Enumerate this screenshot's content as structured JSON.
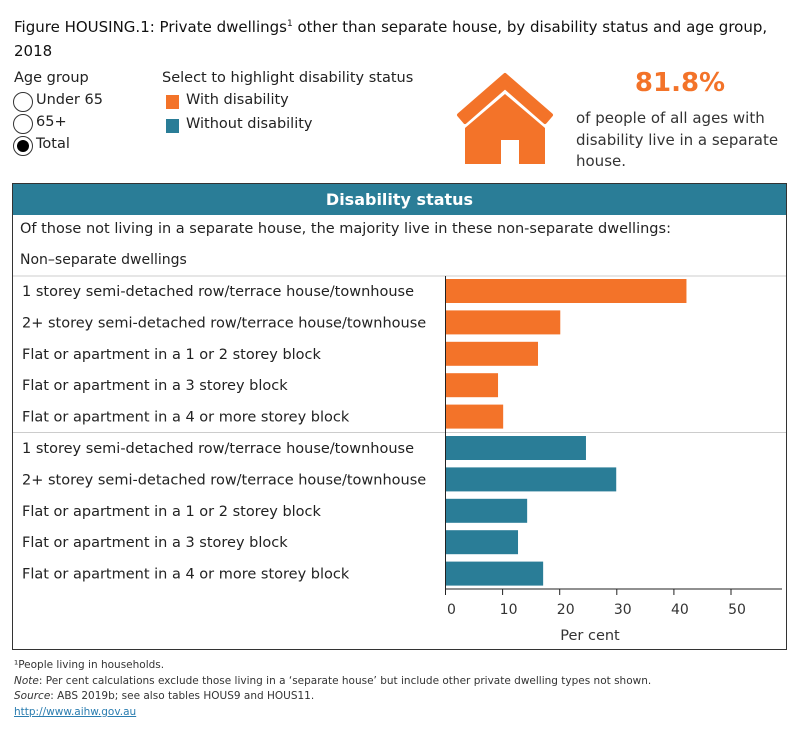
{
  "title": {
    "prefix": "Figure HOUSING.1: Private dwellings",
    "sup": "1",
    "suffix": " other than separate house, by disability status and age group, 2018"
  },
  "age_group": {
    "label": "Age group",
    "options": [
      {
        "label": "Under 65",
        "selected": false
      },
      {
        "label": "65+",
        "selected": false
      },
      {
        "label": "Total",
        "selected": true
      }
    ]
  },
  "legend": {
    "label": "Select to highlight disability status",
    "items": [
      {
        "label": "With disability",
        "color": "#f37329"
      },
      {
        "label": "Without disability",
        "color": "#2a7d97"
      }
    ]
  },
  "kpi": {
    "icon": "house-icon",
    "value": "81.8%",
    "text": "of people of all ages with disability live in a separate house.",
    "color": "#f37329"
  },
  "panel": {
    "header": "Disability status",
    "subtitle": "Of those not living in a separate house, the majority live in these non-separate dwellings:",
    "column_header": "Non–separate dwellings"
  },
  "chart_data": {
    "type": "bar",
    "orientation": "horizontal",
    "xlabel": "Per cent",
    "xlim": [
      0,
      59
    ],
    "xticks": [
      0,
      10,
      20,
      30,
      40,
      50
    ],
    "grid": false,
    "categories": [
      "1 storey semi-detached row/terrace house/townhouse",
      "2+ storey semi-detached row/terrace house/townhouse",
      "Flat or apartment in a 1 or 2 storey block",
      "Flat or apartment in a 3 storey block",
      "Flat or apartment in a 4 or more storey block"
    ],
    "series": [
      {
        "name": "With disability",
        "color": "#f37329",
        "values": [
          42.2,
          20.1,
          16.2,
          9.2,
          10.1
        ]
      },
      {
        "name": "Without disability",
        "color": "#2a7d97",
        "values": [
          24.6,
          29.9,
          14.3,
          12.7,
          17.1
        ]
      }
    ]
  },
  "footnotes": {
    "note1": "¹People living in households.",
    "note_label": "Note",
    "note_text": ": Per cent calculations exclude those living in a ‘separate house’ but include other private dwelling types not shown.",
    "source_label": "Source",
    "source_text": ": ABS 2019b; see also tables HOUS9 and HOUS11.",
    "link": "http://www.aihw.gov.au"
  }
}
